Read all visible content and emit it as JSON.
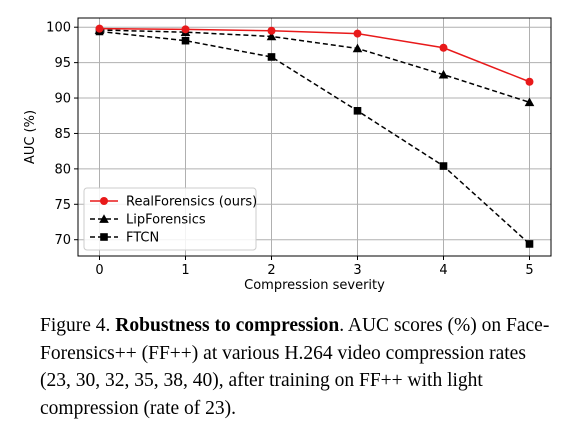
{
  "chart_data": {
    "type": "line",
    "xlabel": "Compression severity",
    "ylabel": "AUC (%)",
    "x": [
      0,
      1,
      2,
      3,
      4,
      5
    ],
    "xlim": [
      -0.25,
      5.25
    ],
    "ylim": [
      67.7,
      101.3
    ],
    "xticks": [
      0,
      1,
      2,
      3,
      4,
      5
    ],
    "yticks": [
      70,
      75,
      80,
      85,
      90,
      95,
      100
    ],
    "grid": true,
    "legend_position": "lower-left",
    "series": [
      {
        "name": "RealForensics (ours)",
        "color": "#e8191a",
        "dash": "solid",
        "marker": "circle",
        "values": [
          99.8,
          99.7,
          99.5,
          99.1,
          97.1,
          92.3
        ]
      },
      {
        "name": "LipForensics",
        "color": "#000000",
        "dash": "dashed",
        "marker": "triangle",
        "values": [
          99.6,
          99.3,
          98.7,
          97.0,
          93.3,
          89.4
        ]
      },
      {
        "name": "FTCN",
        "color": "#000000",
        "dash": "dashed",
        "marker": "square",
        "values": [
          99.4,
          98.1,
          95.8,
          88.2,
          80.4,
          69.4
        ]
      }
    ]
  },
  "caption": {
    "figure_label": "Figure 4.",
    "title": "Robustness to compression",
    "body": ". AUC scores (%) on Face-Forensics++ (FF++) at various H.264 video compression rates (23, 30, 32, 35, 38, 40), after training on FF++ with light compression (rate of 23)."
  }
}
